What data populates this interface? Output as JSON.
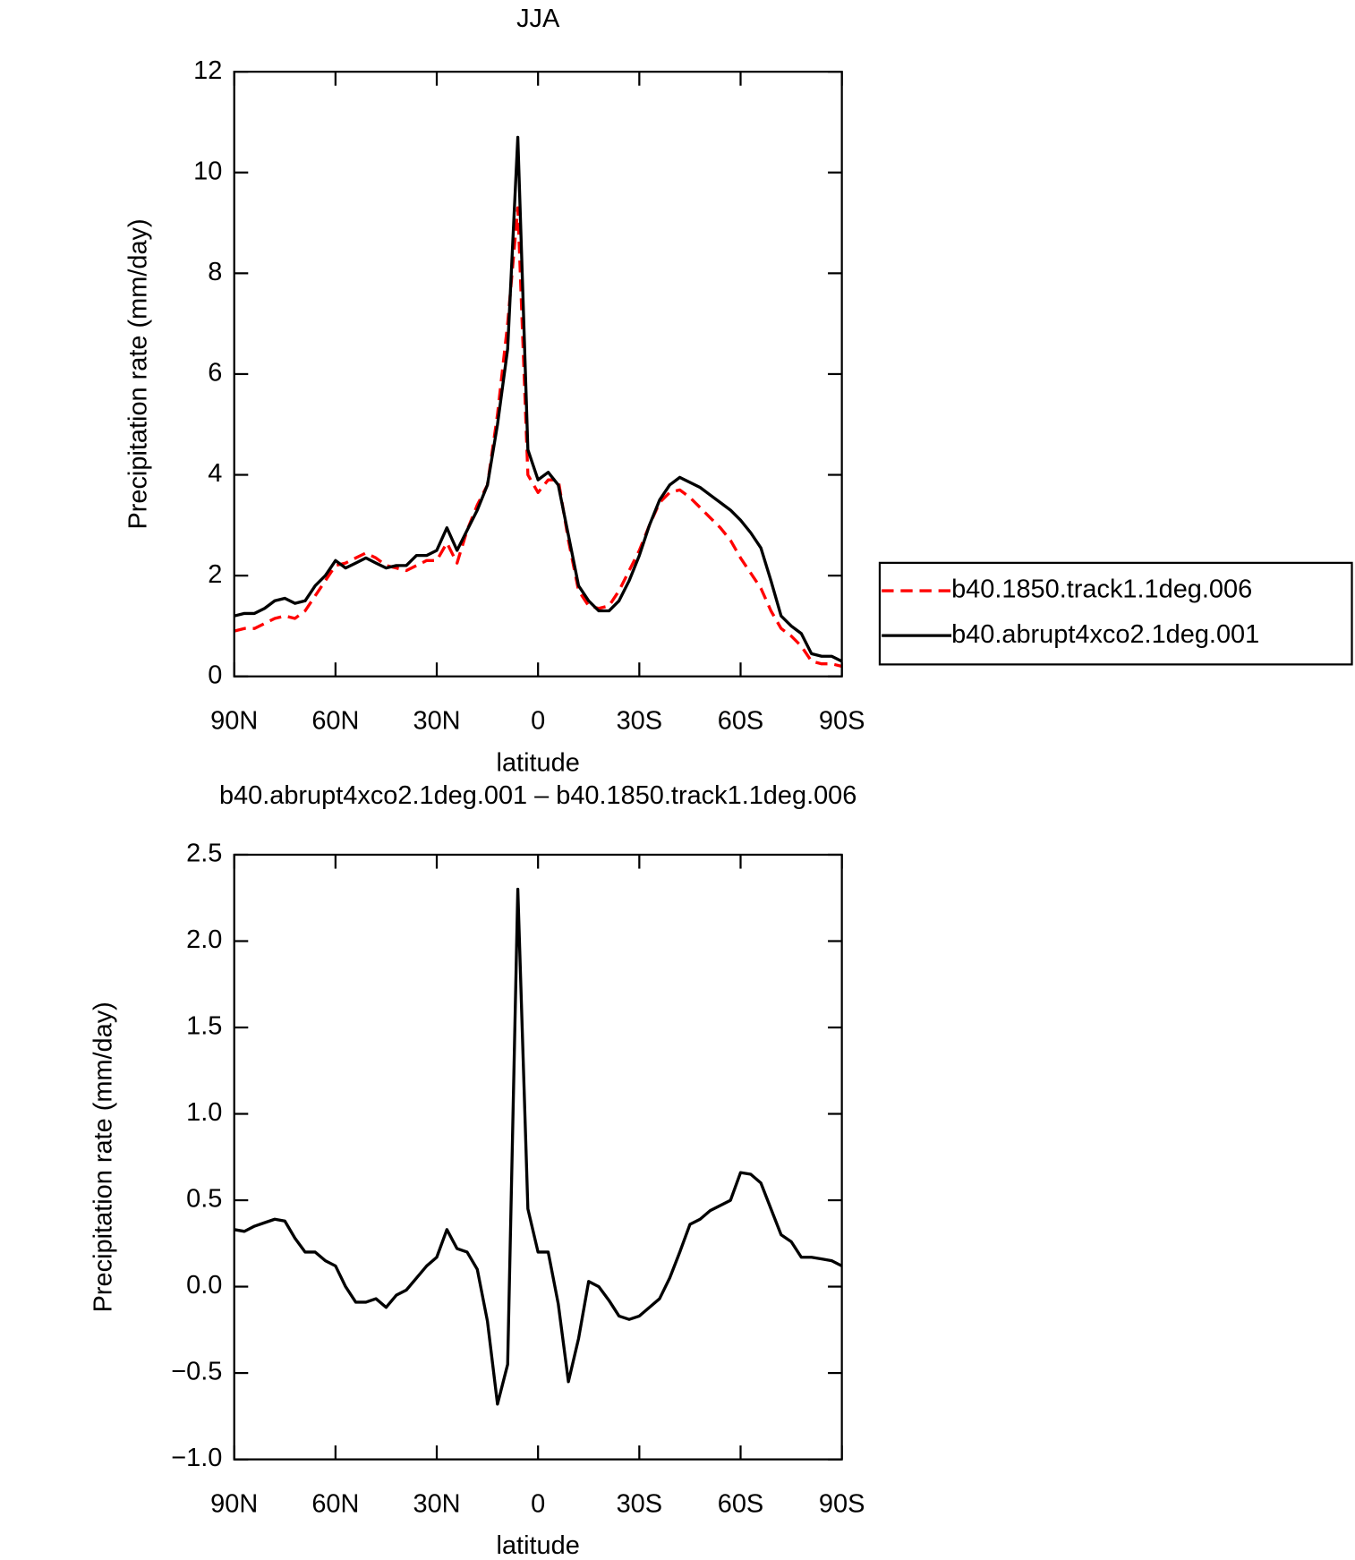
{
  "chart_data": [
    {
      "type": "line",
      "title": "JJA",
      "xlabel": "latitude",
      "ylabel": "Precipitation rate (mm/day)",
      "x": [
        90,
        87,
        84,
        81,
        78,
        75,
        72,
        69,
        66,
        63,
        60,
        57,
        54,
        51,
        48,
        45,
        42,
        39,
        36,
        33,
        30,
        27,
        24,
        21,
        18,
        15,
        12,
        9,
        6,
        3,
        0,
        -3,
        -6,
        -9,
        -12,
        -15,
        -18,
        -21,
        -24,
        -27,
        -30,
        -33,
        -36,
        -39,
        -42,
        -45,
        -48,
        -51,
        -54,
        -57,
        -60,
        -63,
        -66,
        -69,
        -72,
        -75,
        -78,
        -81,
        -84,
        -87,
        -90
      ],
      "series": [
        {
          "name": "b40.1850.track1.1deg.006",
          "color": "#ff0000",
          "dash": "dashed",
          "values": [
            0.9,
            0.95,
            0.95,
            1.05,
            1.15,
            1.2,
            1.15,
            1.3,
            1.6,
            1.9,
            2.2,
            2.25,
            2.35,
            2.45,
            2.35,
            2.2,
            2.15,
            2.1,
            2.2,
            2.3,
            2.3,
            2.65,
            2.25,
            2.9,
            3.4,
            3.8,
            5.2,
            7.0,
            9.3,
            4.0,
            3.65,
            3.9,
            3.9,
            2.7,
            1.7,
            1.4,
            1.35,
            1.4,
            1.7,
            2.1,
            2.5,
            3.0,
            3.45,
            3.65,
            3.7,
            3.55,
            3.35,
            3.15,
            2.95,
            2.7,
            2.35,
            2.05,
            1.75,
            1.3,
            0.95,
            0.8,
            0.6,
            0.3,
            0.25,
            0.25,
            0.2
          ]
        },
        {
          "name": "b40.abrupt4xco2.1deg.001",
          "color": "#000000",
          "dash": "solid",
          "values": [
            1.2,
            1.25,
            1.25,
            1.35,
            1.5,
            1.55,
            1.45,
            1.5,
            1.8,
            2.0,
            2.3,
            2.15,
            2.25,
            2.35,
            2.25,
            2.15,
            2.2,
            2.2,
            2.4,
            2.4,
            2.5,
            2.95,
            2.5,
            2.9,
            3.3,
            3.8,
            5.0,
            6.5,
            10.7,
            4.5,
            3.9,
            4.05,
            3.8,
            2.8,
            1.8,
            1.5,
            1.3,
            1.3,
            1.5,
            1.9,
            2.4,
            3.0,
            3.5,
            3.8,
            3.95,
            3.85,
            3.75,
            3.6,
            3.45,
            3.3,
            3.1,
            2.85,
            2.55,
            1.9,
            1.2,
            1.0,
            0.85,
            0.45,
            0.4,
            0.4,
            0.3
          ]
        }
      ],
      "xlim": [
        90,
        -90
      ],
      "xticks": [
        {
          "value": 90,
          "label": "90N"
        },
        {
          "value": 60,
          "label": "60N"
        },
        {
          "value": 30,
          "label": "30N"
        },
        0,
        {
          "value": -30,
          "label": "30S"
        },
        {
          "value": -60,
          "label": "60S"
        },
        {
          "value": -90,
          "label": "90S"
        }
      ],
      "ylim": [
        0,
        12
      ],
      "yticks": [
        0,
        2,
        4,
        6,
        8,
        10,
        12
      ],
      "legend": "right"
    },
    {
      "type": "line",
      "title": "b40.abrupt4xco2.1deg.001 – b40.1850.track1.1deg.006",
      "xlabel": "latitude",
      "ylabel": "Precipitation rate (mm/day)",
      "x": [
        90,
        87,
        84,
        81,
        78,
        75,
        72,
        69,
        66,
        63,
        60,
        57,
        54,
        51,
        48,
        45,
        42,
        39,
        36,
        33,
        30,
        27,
        24,
        21,
        18,
        15,
        12,
        9,
        6,
        3,
        0,
        -3,
        -6,
        -9,
        -12,
        -15,
        -18,
        -21,
        -24,
        -27,
        -30,
        -33,
        -36,
        -39,
        -42,
        -45,
        -48,
        -51,
        -54,
        -57,
        -60,
        -63,
        -66,
        -69,
        -72,
        -75,
        -78,
        -81,
        -84,
        -87,
        -90
      ],
      "color": "#000000",
      "values": [
        0.33,
        0.32,
        0.35,
        0.37,
        0.39,
        0.38,
        0.28,
        0.2,
        0.2,
        0.15,
        0.12,
        0.0,
        -0.09,
        -0.09,
        -0.07,
        -0.12,
        -0.05,
        -0.02,
        0.05,
        0.12,
        0.17,
        0.33,
        0.22,
        0.2,
        0.1,
        -0.2,
        -0.68,
        -0.45,
        2.3,
        0.45,
        0.2,
        0.2,
        -0.1,
        -0.55,
        -0.3,
        0.03,
        0.0,
        -0.08,
        -0.17,
        -0.19,
        -0.17,
        -0.12,
        -0.07,
        0.05,
        0.2,
        0.36,
        0.39,
        0.44,
        0.47,
        0.5,
        0.66,
        0.65,
        0.6,
        0.45,
        0.3,
        0.26,
        0.17,
        0.17,
        0.16,
        0.15,
        0.12
      ],
      "xlim": [
        90,
        -90
      ],
      "xticks": [
        {
          "value": 90,
          "label": "90N"
        },
        {
          "value": 60,
          "label": "60N"
        },
        {
          "value": 30,
          "label": "30N"
        },
        0,
        {
          "value": -30,
          "label": "30S"
        },
        {
          "value": -60,
          "label": "60S"
        },
        {
          "value": -90,
          "label": "90S"
        }
      ],
      "ylim": [
        -1,
        2.5
      ],
      "yticks": [
        {
          "value": -1,
          "label": "−1.0"
        },
        {
          "value": -0.5,
          "label": "−0.5"
        },
        {
          "value": 0,
          "label": "0.0"
        },
        0.5,
        {
          "value": 1,
          "label": "1.0"
        },
        1.5,
        {
          "value": 2,
          "label": "2.0"
        },
        2.5
      ]
    }
  ]
}
